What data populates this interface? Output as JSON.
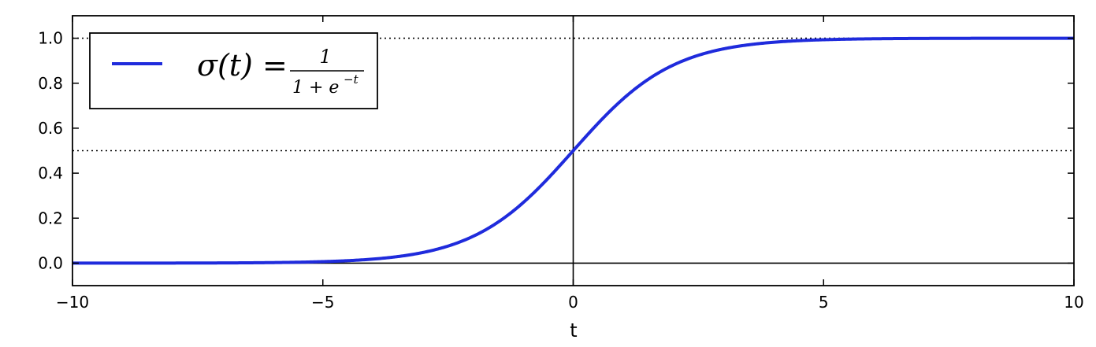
{
  "chart_data": {
    "type": "line",
    "title": "",
    "xlabel": "t",
    "ylabel": "",
    "xlim": [
      -10,
      10
    ],
    "ylim": [
      -0.1,
      1.1
    ],
    "xticks": [
      -10,
      -5,
      0,
      5,
      10
    ],
    "xtick_labels": [
      "−10",
      "−5",
      "0",
      "5",
      "10"
    ],
    "yticks": [
      0.0,
      0.2,
      0.4,
      0.6,
      0.8,
      1.0
    ],
    "ytick_labels": [
      "0.0",
      "0.2",
      "0.4",
      "0.6",
      "0.8",
      "1.0"
    ],
    "grid": false,
    "legend_position": "upper-left",
    "series": [
      {
        "name": "σ(t) = 1 / (1 + e^−t)",
        "function": "sigmoid",
        "color": "#1f2bdc",
        "x": [
          -10,
          -9,
          -8,
          -7,
          -6,
          -5,
          -4,
          -3,
          -2,
          -1,
          0,
          1,
          2,
          3,
          4,
          5,
          6,
          7,
          8,
          9,
          10
        ],
        "y": [
          4.54e-05,
          0.000123,
          0.000335,
          0.000911,
          0.00247,
          0.00669,
          0.018,
          0.0474,
          0.119,
          0.269,
          0.5,
          0.731,
          0.881,
          0.953,
          0.982,
          0.993,
          0.998,
          0.999,
          1.0,
          1.0,
          1.0
        ]
      }
    ],
    "reference_lines": [
      {
        "orientation": "horizontal",
        "value": 0.0,
        "style": "solid",
        "color": "#000000"
      },
      {
        "orientation": "vertical",
        "value": 0.0,
        "style": "solid",
        "color": "#000000"
      },
      {
        "orientation": "horizontal",
        "value": 0.5,
        "style": "dotted",
        "color": "#000000"
      },
      {
        "orientation": "horizontal",
        "value": 1.0,
        "style": "dotted",
        "color": "#000000"
      }
    ],
    "legend": {
      "entries": [
        {
          "series": 0,
          "sigma": "σ(t) =",
          "numerator": "1",
          "denominator": "1 + e",
          "exponent": "−t"
        }
      ]
    }
  }
}
